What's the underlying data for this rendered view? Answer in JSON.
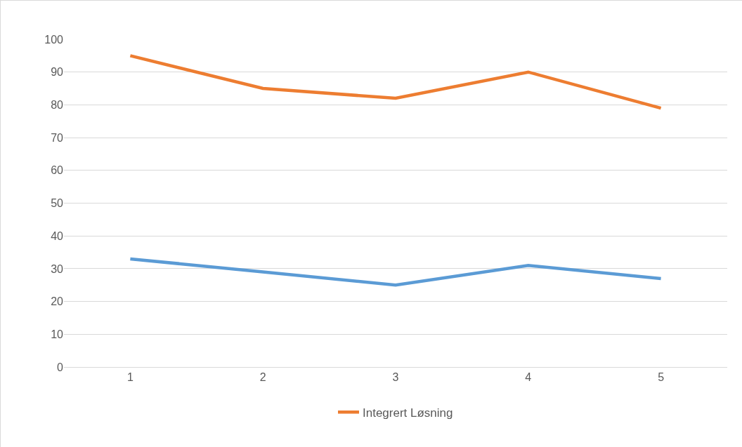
{
  "chart_data": {
    "type": "line",
    "categories": [
      "1",
      "2",
      "3",
      "4",
      "5"
    ],
    "series": [
      {
        "color": "#5b9bd5",
        "values": [
          33,
          29,
          25,
          31,
          27
        ]
      },
      {
        "name": "Integrert Løsning",
        "color": "#ed7d31",
        "values": [
          95,
          85,
          82,
          90,
          79
        ]
      }
    ],
    "ylim": [
      0,
      100
    ],
    "yticks": [
      0,
      10,
      20,
      30,
      40,
      50,
      60,
      70,
      80,
      90,
      100
    ],
    "grid": "y",
    "legend": "bottom",
    "marker": "none",
    "line_style": "solid"
  }
}
